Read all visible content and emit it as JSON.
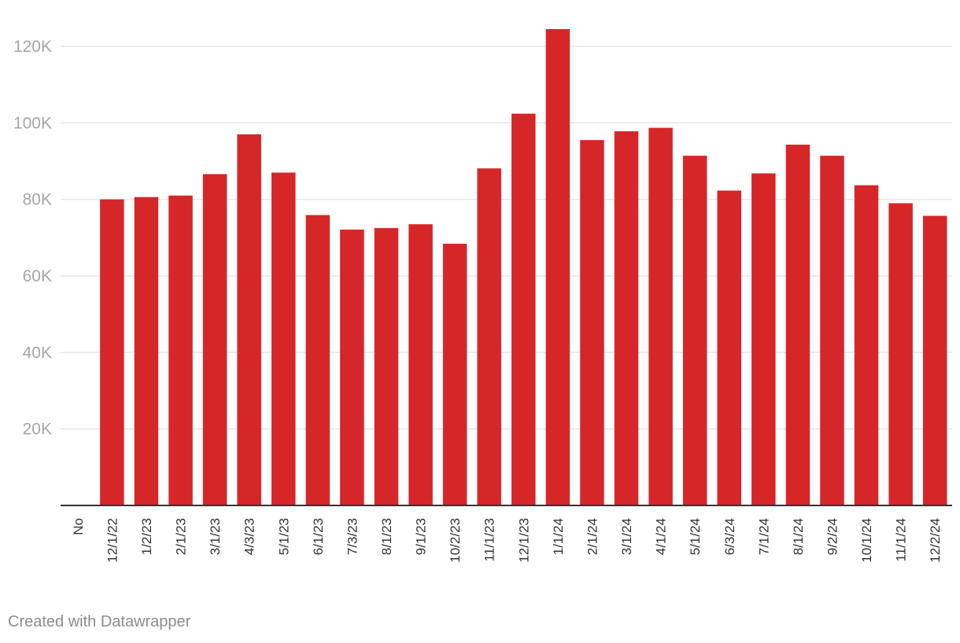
{
  "chart_data": {
    "type": "bar",
    "categories": [
      "No",
      "12/1/22",
      "1/2/23",
      "2/1/23",
      "3/1/23",
      "4/3/23",
      "5/1/23",
      "6/1/23",
      "7/3/23",
      "8/1/23",
      "9/1/23",
      "10/2/23",
      "11/1/23",
      "12/1/23",
      "1/1/24",
      "2/1/24",
      "3/1/24",
      "4/1/24",
      "5/1/24",
      "6/3/24",
      "7/1/24",
      "8/1/24",
      "9/2/24",
      "10/1/24",
      "11/1/24",
      "12/2/24"
    ],
    "values": [
      null,
      80000,
      80600,
      81000,
      86600,
      97000,
      87000,
      75900,
      72100,
      72500,
      73500,
      68400,
      88100,
      102400,
      124500,
      95500,
      97800,
      98700,
      91400,
      82300,
      86800,
      94300,
      91400,
      83700,
      79000,
      75700
    ],
    "yticks": [
      20000,
      40000,
      60000,
      80000,
      100000,
      120000
    ],
    "ytick_labels": [
      "20K",
      "40K",
      "60K",
      "80K",
      "100K",
      "120K"
    ],
    "ylim": [
      0,
      128000
    ],
    "bar_color": "#d62728",
    "grid": true,
    "title": "",
    "xlabel": "",
    "ylabel": ""
  },
  "footer": {
    "credit": "Created with Datawrapper"
  }
}
